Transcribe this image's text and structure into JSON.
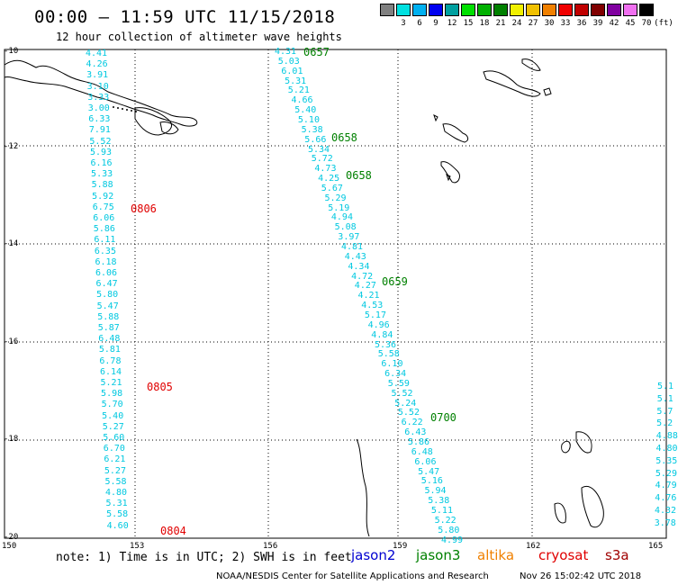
{
  "header": {
    "title": "00:00 – 11:59 UTC 11/15/2018",
    "subtitle": "12 hour collection of altimeter wave heights"
  },
  "color_scale": {
    "swatches": [
      {
        "color": "#808080",
        "label": ""
      },
      {
        "color": "#00e0e0",
        "label": "3"
      },
      {
        "color": "#00b0f0",
        "label": "6"
      },
      {
        "color": "#0000f0",
        "label": "9"
      },
      {
        "color": "#00a0a0",
        "label": "12"
      },
      {
        "color": "#00e000",
        "label": "15"
      },
      {
        "color": "#00b000",
        "label": "18"
      },
      {
        "color": "#008000",
        "label": "21"
      },
      {
        "color": "#f0f000",
        "label": "24"
      },
      {
        "color": "#f0c000",
        "label": "27"
      },
      {
        "color": "#f08000",
        "label": "30"
      },
      {
        "color": "#f00000",
        "label": "33"
      },
      {
        "color": "#c00000",
        "label": "36"
      },
      {
        "color": "#800000",
        "label": "39"
      },
      {
        "color": "#8000a0",
        "label": "42"
      },
      {
        "color": "#f070f0",
        "label": "45"
      },
      {
        "color": "#000000",
        "label": "70"
      }
    ],
    "unit": "(ft)"
  },
  "axes": {
    "lat_ticks": [
      "-10",
      "-12",
      "-14",
      "-16",
      "-18",
      "-20"
    ],
    "lon_ticks": [
      "150",
      "153",
      "156",
      "159",
      "162",
      "165"
    ]
  },
  "tracks": [
    {
      "id": "left",
      "values": [
        "4.41",
        "4.26",
        "3.91",
        "3.10",
        "3.33",
        "3.00",
        "6.33",
        "7.91",
        "5.52",
        "5.93",
        "6.16",
        "5.33",
        "5.88",
        "5.92",
        "6.75",
        "6.06",
        "5.86",
        "6.11",
        "6.35",
        "6.18",
        "6.06",
        "6.47",
        "5.80",
        "5.47",
        "5.88",
        "5.87",
        "6.48",
        "5.81",
        "6.78",
        "6.14",
        "5.21",
        "5.98",
        "5.70",
        "5.40",
        "5.27",
        "5.60",
        "6.70",
        "6.21",
        "5.27",
        "5.58",
        "4.80",
        "5.31",
        "5.58",
        "4.60"
      ]
    },
    {
      "id": "middle",
      "values": [
        "4.31",
        "5.03",
        "6.01",
        "5.31",
        "5.21",
        "4.66",
        "5.40",
        "5.10",
        "5.38",
        "5.66",
        "5.34",
        "5.72",
        "4.73",
        "4.25",
        "5.67",
        "5.29",
        "5.19",
        "4.94",
        "5.08",
        "3.97",
        "4.81",
        "4.43",
        "4.34",
        "4.72",
        "4.27",
        "4.21",
        "4.53",
        "5.17",
        "4.96",
        "4.84",
        "5.36",
        "5.58",
        "6.10",
        "6.34",
        "5.59",
        "5.52",
        "5.24",
        "5.52",
        "6.22",
        "6.43",
        "5.86",
        "6.48",
        "6.06",
        "5.47",
        "5.16",
        "5.94",
        "5.38",
        "5.11",
        "5.22",
        "5.80",
        "4.99"
      ]
    },
    {
      "id": "right",
      "values": [
        "5.1",
        "5.1",
        "5.7",
        "5.2",
        "4.88",
        "4.80",
        "5.35",
        "5.29",
        "4.79",
        "4.76",
        "4.32",
        "3.78"
      ]
    }
  ],
  "time_stamps": [
    {
      "text": "0657",
      "color": "#008000"
    },
    {
      "text": "0658",
      "color": "#008000"
    },
    {
      "text": "0658",
      "color": "#008000"
    },
    {
      "text": "0659",
      "color": "#008000"
    },
    {
      "text": "0700",
      "color": "#008000"
    },
    {
      "text": "0806",
      "color": "#e00000"
    },
    {
      "text": "0805",
      "color": "#e00000"
    },
    {
      "text": "0804",
      "color": "#e00000"
    }
  ],
  "note": "note:  1) Time is in UTC;  2) SWH is in feet",
  "satellites": [
    {
      "name": "jason2",
      "color": "#0000d0"
    },
    {
      "name": "jason3",
      "color": "#008000"
    },
    {
      "name": "altika",
      "color": "#f08000"
    },
    {
      "name": "cryosat",
      "color": "#e00000"
    },
    {
      "name": "s3a",
      "color": "#a00000"
    }
  ],
  "footer": {
    "credit": "NOAA/NESDIS Center for Satellite Applications and Research",
    "timestamp": "Nov 26 15:02:42 UTC 2018"
  }
}
